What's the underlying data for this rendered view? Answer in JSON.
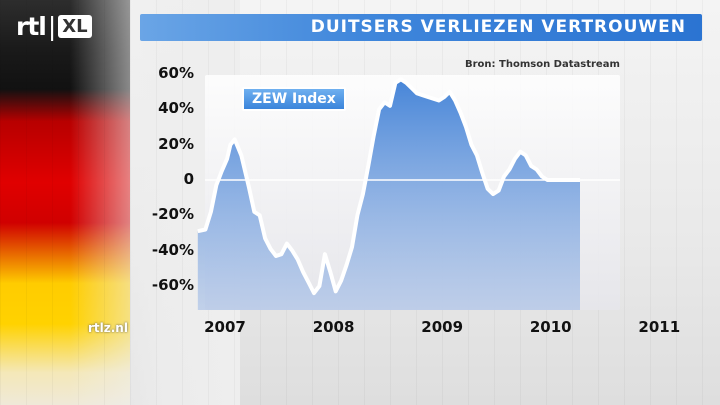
{
  "header": {
    "logo_rtl": "rtl",
    "logo_sep": "|",
    "logo_xl": "XL",
    "title": "DUITSERS VERLIEZEN VERTROUWEN"
  },
  "footer": {
    "site": "rtlz.nl"
  },
  "colors": {
    "banner": "#2b74d2",
    "line": "#ffffff",
    "area": "#4a86d6"
  },
  "chart_data": {
    "type": "area",
    "source": "Bron: Thomson Datastream",
    "legend": "ZEW Index",
    "ylim": [
      -70,
      65
    ],
    "xlim": [
      2006.98,
      2011.0
    ],
    "y_ticks": [
      60,
      40,
      20,
      0,
      -20,
      -40,
      -60
    ],
    "y_tick_labels": [
      "60%",
      "40%",
      "20%",
      "0",
      "-20%",
      "-40%",
      "-60%"
    ],
    "x_ticks": [
      2007,
      2008,
      2009,
      2010,
      2011
    ],
    "x_tick_labels": [
      "2007",
      "2008",
      "2009",
      "2010",
      "2011"
    ],
    "grid": false,
    "series": [
      {
        "name": "ZEW Index",
        "x": [
          2006.98,
          2007.05,
          2007.1,
          2007.15,
          2007.2,
          2007.25,
          2007.28,
          2007.32,
          2007.38,
          2007.45,
          2007.5,
          2007.55,
          2007.6,
          2007.65,
          2007.7,
          2007.75,
          2007.8,
          2007.85,
          2007.9,
          2007.95,
          2008.0,
          2008.05,
          2008.1,
          2008.15,
          2008.2,
          2008.25,
          2008.3,
          2008.35,
          2008.4,
          2008.45,
          2008.5,
          2008.55,
          2008.6,
          2008.65,
          2008.7,
          2008.75,
          2008.8,
          2008.85,
          2008.9,
          2008.95,
          2009.0,
          2009.05,
          2009.1,
          2009.15,
          2009.2,
          2009.25,
          2009.3,
          2009.35,
          2009.4,
          2009.45,
          2009.5,
          2009.55,
          2009.6,
          2009.65,
          2009.7,
          2009.75,
          2009.8,
          2009.85,
          2009.9,
          2009.95,
          2010.0,
          2010.05,
          2010.1,
          2010.15,
          2010.2,
          2010.25,
          2010.3,
          2010.35,
          2010.4,
          2010.45,
          2010.5
        ],
        "y": [
          -29,
          -28,
          -18,
          -3,
          5,
          12,
          20,
          23,
          14,
          -4,
          -18,
          -20,
          -33,
          -39,
          -43,
          -42,
          -36,
          -40,
          -45,
          -52,
          -58,
          -64,
          -60,
          -42,
          -52,
          -63,
          -57,
          -48,
          -38,
          -20,
          -8,
          8,
          25,
          40,
          44,
          42,
          55,
          57,
          55,
          52,
          49,
          48,
          47,
          46,
          45,
          47,
          50,
          45,
          38,
          30,
          20,
          14,
          4,
          -5,
          -8,
          -6,
          2,
          6,
          12,
          16,
          14,
          8,
          6,
          2,
          0,
          0,
          0,
          0,
          0,
          0,
          0
        ]
      }
    ]
  }
}
